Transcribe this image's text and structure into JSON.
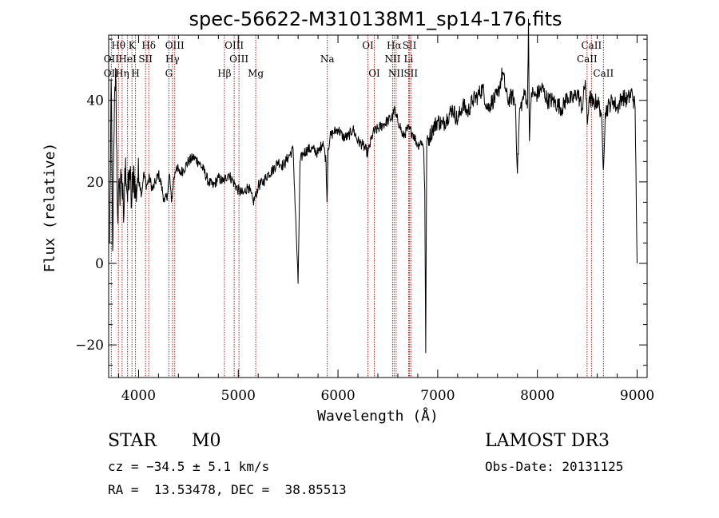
{
  "chart_data": {
    "type": "line",
    "title": "spec-56622-M310138M1_sp14-176.fits",
    "xlabel": "Wavelength (Å)",
    "ylabel": "Flux (relative)",
    "xlim": [
      3700,
      9100
    ],
    "ylim": [
      -28,
      56
    ],
    "xticks": [
      4000,
      5000,
      6000,
      7000,
      8000,
      9000
    ],
    "yticks": [
      -20,
      0,
      20,
      40
    ],
    "xtick_labels": [
      "4000",
      "5000",
      "6000",
      "7000",
      "8000",
      "9000"
    ],
    "ytick_labels": [
      "−20",
      "0",
      "20",
      "40"
    ],
    "series_color": "#000000",
    "line_marker_color": "#b22222",
    "spectrum": {
      "name": "flux",
      "x": [
        3710,
        3725,
        3740,
        3755,
        3770,
        3790,
        3810,
        3830,
        3850,
        3870,
        3890,
        3910,
        3930,
        3950,
        3970,
        3990,
        4010,
        4030,
        4050,
        4080,
        4110,
        4140,
        4170,
        4200,
        4230,
        4260,
        4290,
        4310,
        4330,
        4350,
        4380,
        4410,
        4450,
        4500,
        4550,
        4600,
        4650,
        4700,
        4750,
        4800,
        4850,
        4900,
        4950,
        5000,
        5050,
        5100,
        5150,
        5180,
        5200,
        5250,
        5300,
        5350,
        5400,
        5450,
        5500,
        5550,
        5580,
        5600,
        5620,
        5650,
        5700,
        5750,
        5800,
        5850,
        5880,
        5890,
        5900,
        5920,
        5950,
        6000,
        6050,
        6100,
        6150,
        6200,
        6250,
        6300,
        6350,
        6400,
        6450,
        6500,
        6550,
        6563,
        6580,
        6620,
        6650,
        6700,
        6750,
        6800,
        6840,
        6860,
        6870,
        6880,
        6890,
        6920,
        6950,
        7000,
        7050,
        7100,
        7150,
        7200,
        7250,
        7300,
        7350,
        7400,
        7450,
        7500,
        7550,
        7600,
        7650,
        7700,
        7750,
        7780,
        7800,
        7820,
        7850,
        7880,
        7900,
        7910,
        7920,
        7940,
        7980,
        8050,
        8100,
        8150,
        8200,
        8250,
        8300,
        8350,
        8400,
        8450,
        8480,
        8500,
        8520,
        8560,
        8600,
        8640,
        8660,
        8680,
        8720,
        8760,
        8800,
        8850,
        8900,
        8950,
        8980,
        9000
      ],
      "y": [
        5,
        45,
        3,
        33,
        48,
        12,
        18,
        22,
        10,
        26,
        15,
        23,
        14,
        24,
        16,
        21,
        20,
        17,
        22,
        19,
        21,
        18,
        20,
        22,
        19,
        15,
        17,
        22,
        15,
        20,
        24,
        22,
        23,
        25,
        26,
        25,
        23,
        20,
        19,
        21,
        20,
        22,
        20,
        18,
        17,
        19,
        15,
        17,
        19,
        20,
        22,
        23,
        25,
        24,
        26,
        28,
        8,
        -5,
        25,
        27,
        28,
        28,
        27,
        30,
        25,
        15,
        28,
        31,
        32,
        33,
        31,
        31,
        33,
        30,
        29,
        27,
        32,
        33,
        34,
        35,
        36,
        38,
        36,
        34,
        31,
        33,
        32,
        29,
        30,
        28,
        18,
        -22,
        30,
        31,
        33,
        35,
        34,
        36,
        38,
        35,
        39,
        37,
        40,
        41,
        43,
        38,
        40,
        41,
        47,
        40,
        41,
        39,
        22,
        37,
        40,
        42,
        38,
        60,
        30,
        42,
        41,
        43,
        40,
        40,
        39,
        38,
        41,
        40,
        42,
        38,
        45,
        34,
        41,
        39,
        40,
        37,
        23,
        37,
        39,
        40,
        38,
        41,
        40,
        42,
        38,
        0
      ]
    },
    "spectral_lines": [
      {
        "label": "Hθ",
        "wl": 3798,
        "row": 1
      },
      {
        "label": "K",
        "wl": 3934,
        "row": 1
      },
      {
        "label": "Hδ",
        "wl": 4102,
        "row": 1
      },
      {
        "label": "OIII",
        "wl": 4363,
        "row": 1
      },
      {
        "label": "OIII",
        "wl": 4959,
        "row": 1
      },
      {
        "label": "OI",
        "wl": 6300,
        "row": 1
      },
      {
        "label": "Hα",
        "wl": 6563,
        "row": 1
      },
      {
        "label": "SII",
        "wl": 6717,
        "row": 1
      },
      {
        "label": "CaII",
        "wl": 8542,
        "row": 1
      },
      {
        "label": "OII",
        "wl": 3727,
        "row": 2
      },
      {
        "label": "HeI",
        "wl": 3889,
        "row": 2
      },
      {
        "label": "SII",
        "wl": 4070,
        "row": 2
      },
      {
        "label": "Hγ",
        "wl": 4340,
        "row": 2
      },
      {
        "label": "OIII",
        "wl": 5007,
        "row": 2
      },
      {
        "label": "Na",
        "wl": 5893,
        "row": 2
      },
      {
        "label": "NII",
        "wl": 6548,
        "row": 2
      },
      {
        "label": "Li",
        "wl": 6708,
        "row": 2
      },
      {
        "label": "CaII",
        "wl": 8498,
        "row": 2
      },
      {
        "label": "OII",
        "wl": 3727,
        "row": 3
      },
      {
        "label": "Hη",
        "wl": 3835,
        "row": 3
      },
      {
        "label": "H",
        "wl": 3969,
        "row": 3
      },
      {
        "label": "G",
        "wl": 4304,
        "row": 3
      },
      {
        "label": "Hβ",
        "wl": 4861,
        "row": 3
      },
      {
        "label": "Mg",
        "wl": 5175,
        "row": 3
      },
      {
        "label": "OI",
        "wl": 6364,
        "row": 3
      },
      {
        "label": "NII",
        "wl": 6583,
        "row": 3
      },
      {
        "label": "SII",
        "wl": 6731,
        "row": 3
      },
      {
        "label": "CaII",
        "wl": 8662,
        "row": 3
      }
    ]
  },
  "info": {
    "object_class": "STAR",
    "subclass": "M0",
    "survey": "LAMOST DR3",
    "cz": "cz = −34.5 ± 5.1 km/s",
    "obs_date": "Obs-Date: 20131125",
    "coords": "RA =  13.53478, DEC =  38.85513"
  }
}
